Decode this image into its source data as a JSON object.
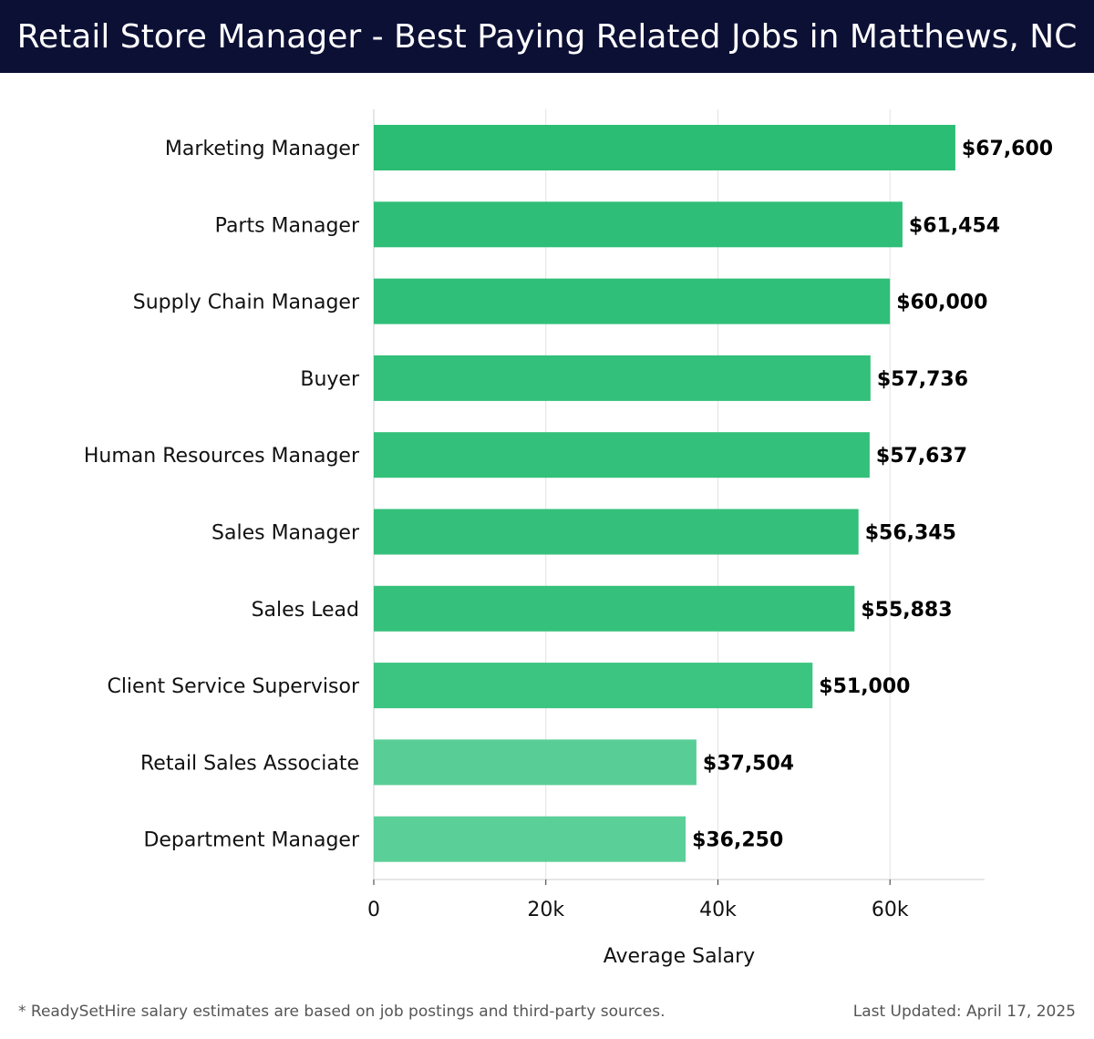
{
  "header": {
    "title": "Retail Store Manager - Best Paying Related Jobs in Matthews, NC",
    "background_color": "#0c1035"
  },
  "chart_data": {
    "type": "bar",
    "orientation": "horizontal",
    "title": "Retail Store Manager - Best Paying Related Jobs in Matthews, NC",
    "xlabel": "Average Salary",
    "ylabel": "",
    "xlim": [
      0,
      71000
    ],
    "x_ticks": [
      0,
      20000,
      40000,
      60000
    ],
    "x_tick_labels": [
      "0",
      "20k",
      "40k",
      "60k"
    ],
    "grid": "vertical",
    "legend": "none",
    "categories": [
      "Marketing Manager",
      "Parts Manager",
      "Supply Chain Manager",
      "Buyer",
      "Human Resources Manager",
      "Sales Manager",
      "Sales Lead",
      "Client Service Supervisor",
      "Retail Sales Associate",
      "Department Manager"
    ],
    "values": [
      67600,
      61454,
      60000,
      57736,
      57637,
      56345,
      55883,
      51000,
      37504,
      36250
    ],
    "value_labels": [
      "$67,600",
      "$61,454",
      "$60,000",
      "$57,736",
      "$57,637",
      "$56,345",
      "$55,883",
      "$51,000",
      "$37,504",
      "$36,250"
    ],
    "colors": {
      "bar_high": "#2bbd74",
      "bar_low": "#5bcf98",
      "grid": "#e2e2e2",
      "axis": "#cccccc",
      "label": "#111111"
    }
  },
  "footer": {
    "note": "* ReadySetHire salary estimates are based on job postings and third-party sources.",
    "updated": "Last Updated: April 17, 2025"
  }
}
